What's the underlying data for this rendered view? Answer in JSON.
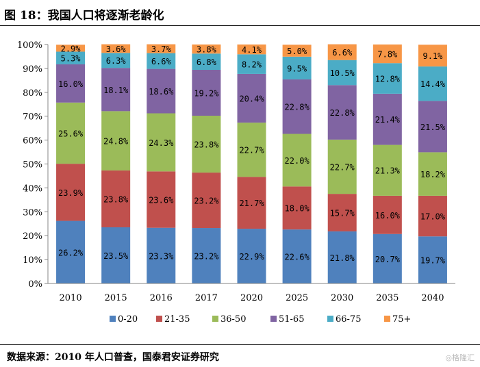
{
  "header": {
    "title": "图 18：我国人口将逐渐老龄化"
  },
  "footer": {
    "source": "数据来源：2010 年人口普查，国泰君安证券研究",
    "watermark": "◎格隆汇"
  },
  "chart_data": {
    "type": "bar",
    "stacked": true,
    "percent": true,
    "categories": [
      "2010",
      "2015",
      "2016",
      "2017",
      "2020",
      "2025",
      "2030",
      "2035",
      "2040"
    ],
    "series": [
      {
        "name": "0-20",
        "color": "#4f81bd",
        "values": [
          26.2,
          23.5,
          23.3,
          23.2,
          22.9,
          22.6,
          21.8,
          20.7,
          19.7
        ]
      },
      {
        "name": "21-35",
        "color": "#c0504d",
        "values": [
          23.9,
          23.8,
          23.6,
          23.2,
          21.7,
          18.0,
          15.7,
          16.0,
          17.0
        ]
      },
      {
        "name": "36-50",
        "color": "#9bbb59",
        "values": [
          25.6,
          24.8,
          24.3,
          23.8,
          22.7,
          22.0,
          22.7,
          21.3,
          18.2
        ]
      },
      {
        "name": "51-65",
        "color": "#8064a2",
        "values": [
          16.0,
          18.1,
          18.6,
          19.2,
          20.4,
          22.8,
          22.8,
          21.4,
          21.5
        ]
      },
      {
        "name": "66-75",
        "color": "#4bacc6",
        "values": [
          5.3,
          6.3,
          6.6,
          6.8,
          8.2,
          9.5,
          10.5,
          12.8,
          14.4
        ]
      },
      {
        "name": "75+",
        "color": "#f79646",
        "values": [
          2.9,
          3.6,
          3.7,
          3.8,
          4.1,
          5.0,
          6.6,
          7.8,
          9.1
        ]
      }
    ],
    "ylim": [
      0,
      100
    ],
    "yticks": [
      "0%",
      "10%",
      "20%",
      "30%",
      "40%",
      "50%",
      "60%",
      "70%",
      "80%",
      "90%",
      "100%"
    ],
    "grid": false,
    "legend": "bottom"
  }
}
